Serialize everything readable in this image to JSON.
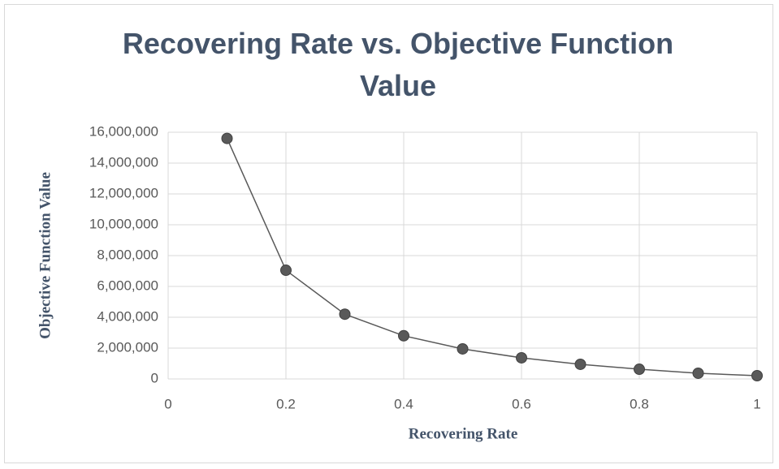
{
  "chart_data": {
    "type": "line",
    "title": "Recovering Rate vs. Objective Function Value",
    "x_label": "Recovering Rate",
    "y_label": "Objective Function Value",
    "x": [
      0.1,
      0.2,
      0.3,
      0.4,
      0.5,
      0.6,
      0.7,
      0.8,
      0.9,
      1
    ],
    "series": [
      {
        "name": "Objective Function Value",
        "color": "#595959",
        "values": [
          15600000,
          7050000,
          4200000,
          2800000,
          1950000,
          1370000,
          950000,
          630000,
          370000,
          210000
        ]
      }
    ],
    "xlim": [
      0,
      1
    ],
    "xticks": [
      0,
      0.2,
      0.4,
      0.6,
      0.8,
      1
    ],
    "ylim": [
      0,
      16000000
    ],
    "yticks": [
      0,
      {
        "value": 2000000,
        "label": "2,000,000"
      },
      {
        "value": 4000000,
        "label": "4,000,000"
      },
      {
        "value": 6000000,
        "label": "6,000,000"
      },
      {
        "value": 8000000,
        "label": "8,000,000"
      },
      {
        "value": 10000000,
        "label": "10,000,000"
      },
      {
        "value": 12000000,
        "label": "12,000,000"
      },
      {
        "value": 14000000,
        "label": "14,000,000"
      },
      {
        "value": 16000000,
        "label": "16,000,000"
      }
    ],
    "grid": true
  }
}
